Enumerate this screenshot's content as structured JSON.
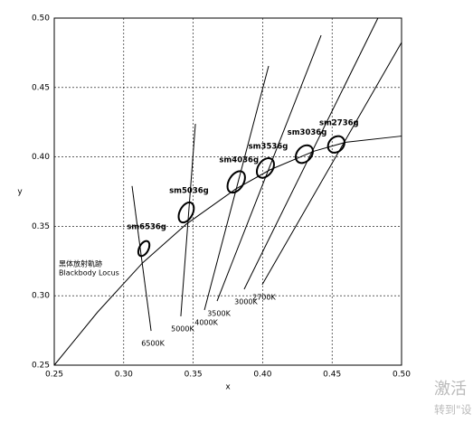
{
  "chart_data": {
    "type": "chromaticity",
    "xlabel": "x",
    "ylabel": "y",
    "xlim": [
      0.25,
      0.5
    ],
    "ylim": [
      0.25,
      0.5
    ],
    "xticks": [
      {
        "value": 0.25,
        "label": "0.25"
      },
      {
        "value": 0.3,
        "label": "0.30"
      },
      {
        "value": 0.35,
        "label": "0.35"
      },
      {
        "value": 0.4,
        "label": "0.40"
      },
      {
        "value": 0.45,
        "label": "0.45"
      },
      {
        "value": 0.5,
        "label": "0.50"
      }
    ],
    "yticks": [
      {
        "value": 0.25,
        "label": "0.25"
      },
      {
        "value": 0.3,
        "label": "0.30"
      },
      {
        "value": 0.35,
        "label": "0.35"
      },
      {
        "value": 0.4,
        "label": "0.40"
      },
      {
        "value": 0.45,
        "label": "0.45"
      },
      {
        "value": 0.5,
        "label": "0.50"
      }
    ],
    "grid": true,
    "locus": {
      "name_cn": "黑体放射軌跡",
      "name": "Blackbody Locus",
      "x": [
        0.25,
        0.281,
        0.3135,
        0.3451,
        0.3805,
        0.4053,
        0.4369,
        0.4599,
        0.5
      ],
      "y": [
        0.25,
        0.288,
        0.3236,
        0.3516,
        0.3768,
        0.3907,
        0.4041,
        0.4106,
        0.415
      ]
    },
    "ellipses": [
      {
        "name": "sm6536g",
        "x": 0.3145,
        "y": 0.334,
        "a": 0.0059,
        "b": 0.0033,
        "angle": 62
      },
      {
        "name": "sm5036g",
        "x": 0.345,
        "y": 0.36,
        "a": 0.0078,
        "b": 0.0046,
        "angle": 62
      },
      {
        "name": "sm4036g",
        "x": 0.381,
        "y": 0.382,
        "a": 0.0085,
        "b": 0.0052,
        "angle": 58
      },
      {
        "name": "sm3536g",
        "x": 0.402,
        "y": 0.392,
        "a": 0.0078,
        "b": 0.0052,
        "angle": 55
      },
      {
        "name": "sm3036g",
        "x": 0.43,
        "y": 0.402,
        "a": 0.0072,
        "b": 0.0052,
        "angle": 48
      },
      {
        "name": "sm2736g",
        "x": 0.453,
        "y": 0.409,
        "a": 0.0066,
        "b": 0.0052,
        "angle": 45
      }
    ],
    "isotherms": [
      {
        "label": "6500K",
        "x": [
          0.306,
          0.3197
        ],
        "y": [
          0.379,
          0.2747
        ]
      },
      {
        "label": "5000K",
        "x": [
          0.3516,
          0.3411
        ],
        "y": [
          0.4238,
          0.2852
        ]
      },
      {
        "label": "4000K",
        "x": [
          0.4043,
          0.3581
        ],
        "y": [
          0.4655,
          0.2897
        ]
      },
      {
        "label": "3500K",
        "x": [
          0.4421,
          0.3672
        ],
        "y": [
          0.4876,
          0.2962
        ]
      },
      {
        "label": "3000K",
        "x": [
          0.483,
          0.3867
        ],
        "y": [
          0.5,
          0.3047
        ]
      },
      {
        "label": "2700K",
        "x": [
          0.5,
          0.3997
        ],
        "y": [
          0.4824,
          0.308
        ]
      }
    ]
  },
  "watermark": {
    "line1": "激活",
    "line2": "转到\"设"
  }
}
